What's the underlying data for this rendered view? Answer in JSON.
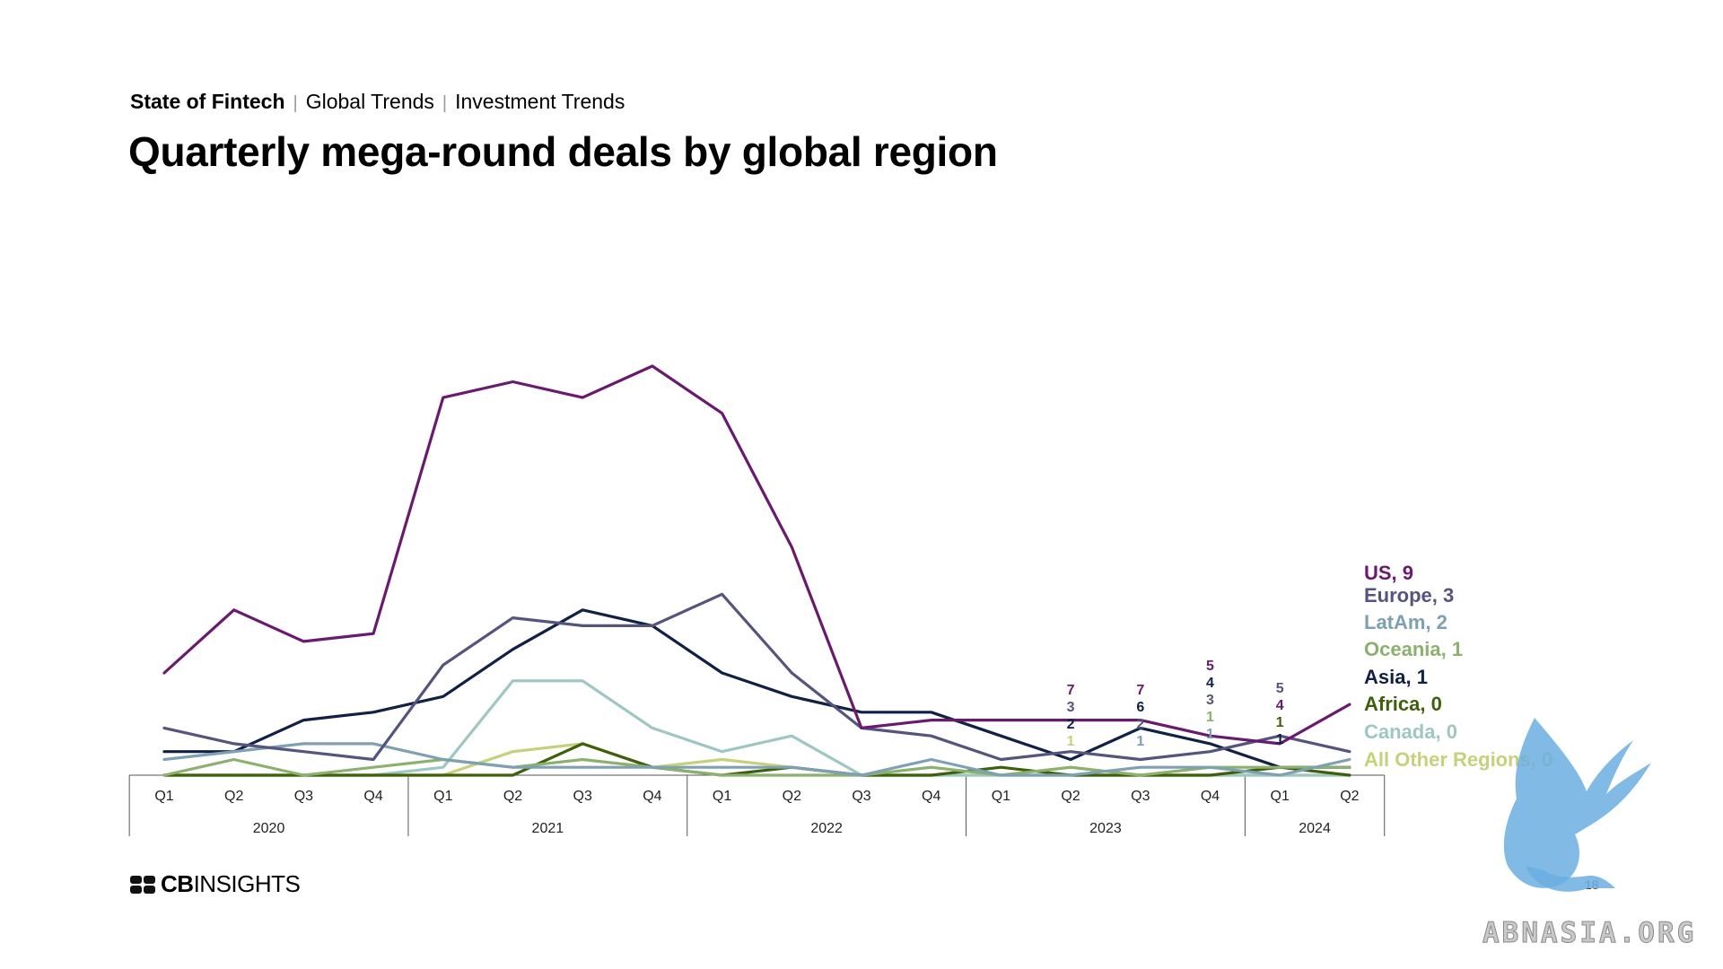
{
  "header": {
    "breadcrumb": [
      "State of Fintech",
      "Global Trends",
      "Investment Trends"
    ],
    "title": "Quarterly mega-round deals by global region"
  },
  "footer": {
    "logo_text_bold": "CB",
    "logo_text_regular": "INSIGHTS",
    "page_number": "18"
  },
  "watermark": {
    "text": "ABNASIA.ORG"
  },
  "chart_data": {
    "type": "line",
    "title": "Quarterly mega-round deals by global region",
    "x_quarters": [
      "Q1",
      "Q2",
      "Q3",
      "Q4",
      "Q1",
      "Q2",
      "Q3",
      "Q4",
      "Q1",
      "Q2",
      "Q3",
      "Q4",
      "Q1",
      "Q2",
      "Q3",
      "Q4",
      "Q1",
      "Q2"
    ],
    "x_years": [
      {
        "label": "2020",
        "quarters": 4
      },
      {
        "label": "2021",
        "quarters": 4
      },
      {
        "label": "2022",
        "quarters": 4
      },
      {
        "label": "2023",
        "quarters": 4
      },
      {
        "label": "2024",
        "quarters": 2
      }
    ],
    "ylim": [
      0,
      52
    ],
    "grid": false,
    "legend": "right",
    "series": [
      {
        "name": "US",
        "legend_label": "US, 9",
        "color": "#6a1a6e",
        "values": [
          13,
          21,
          17,
          18,
          48,
          50,
          48,
          52,
          46,
          29,
          6,
          7,
          7,
          7,
          7,
          5,
          4,
          9
        ]
      },
      {
        "name": "Europe",
        "legend_label": "Europe, 3",
        "color": "#55547f",
        "values": [
          6,
          4,
          3,
          2,
          14,
          20,
          19,
          19,
          23,
          13,
          6,
          5,
          2,
          3,
          2,
          3,
          5,
          3
        ]
      },
      {
        "name": "LatAm",
        "legend_label": "LatAm, 2",
        "color": "#7da0b2",
        "values": [
          2,
          3,
          4,
          4,
          2,
          1,
          1,
          1,
          1,
          1,
          0,
          2,
          0,
          0,
          1,
          1,
          0,
          2
        ]
      },
      {
        "name": "Oceania",
        "legend_label": "Oceania, 1",
        "color": "#8cb06e",
        "values": [
          0,
          2,
          0,
          1,
          2,
          1,
          2,
          1,
          0,
          0,
          0,
          1,
          0,
          1,
          0,
          1,
          1,
          1
        ]
      },
      {
        "name": "Asia",
        "legend_label": "Asia, 1",
        "color": "#112145",
        "values": [
          3,
          3,
          7,
          8,
          10,
          16,
          21,
          19,
          13,
          10,
          8,
          8,
          5,
          2,
          6,
          4,
          1,
          1
        ]
      },
      {
        "name": "Africa",
        "legend_label": "Africa, 0",
        "color": "#3e5f0b",
        "values": [
          0,
          0,
          0,
          0,
          0,
          0,
          4,
          1,
          0,
          1,
          0,
          0,
          1,
          0,
          0,
          0,
          1,
          0
        ]
      },
      {
        "name": "Canada",
        "legend_label": "Canada, 0",
        "color": "#9ec7c2",
        "values": [
          0,
          0,
          0,
          0,
          1,
          12,
          12,
          6,
          3,
          5,
          0,
          0,
          0,
          0,
          0,
          0,
          0,
          0
        ]
      },
      {
        "name": "All Other Regions",
        "legend_label": "All Other Regions, 0",
        "color": "#c7d07a",
        "values": [
          0,
          0,
          0,
          0,
          0,
          3,
          4,
          1,
          2,
          1,
          0,
          0,
          0,
          1,
          0,
          0,
          0,
          0
        ]
      }
    ],
    "data_labels": [
      {
        "quarter_index": 13,
        "series": "US",
        "text": "7",
        "color": "#6a1a6e"
      },
      {
        "quarter_index": 13,
        "series": "Europe",
        "text": "3",
        "color": "#55547f"
      },
      {
        "quarter_index": 13,
        "series": "Asia",
        "text": "2",
        "color": "#112145"
      },
      {
        "quarter_index": 13,
        "series": "All Other Regions",
        "text": "1",
        "color": "#c7d07a"
      },
      {
        "quarter_index": 14,
        "series": "US",
        "text": "7",
        "color": "#6a1a6e"
      },
      {
        "quarter_index": 14,
        "series": "Asia",
        "text": "6",
        "color": "#112145"
      },
      {
        "quarter_index": 14,
        "series": "Europe",
        "text": "2",
        "color": "#55547f"
      },
      {
        "quarter_index": 14,
        "series": "LatAm",
        "text": "1",
        "color": "#7da0b2"
      },
      {
        "quarter_index": 15,
        "series": "US",
        "text": "5",
        "color": "#6a1a6e"
      },
      {
        "quarter_index": 15,
        "series": "Asia",
        "text": "4",
        "color": "#112145"
      },
      {
        "quarter_index": 15,
        "series": "Europe",
        "text": "3",
        "color": "#55547f"
      },
      {
        "quarter_index": 15,
        "series": "Oceania",
        "text": "1",
        "color": "#8cb06e"
      },
      {
        "quarter_index": 15,
        "series": "LatAm",
        "text": "1",
        "color": "#7da0b2"
      },
      {
        "quarter_index": 16,
        "series": "Europe",
        "text": "5",
        "color": "#55547f"
      },
      {
        "quarter_index": 16,
        "series": "US",
        "text": "4",
        "color": "#6a1a6e"
      },
      {
        "quarter_index": 16,
        "series": "Africa",
        "text": "1",
        "color": "#3e5f0b"
      },
      {
        "quarter_index": 16,
        "series": "Asia",
        "text": "1",
        "color": "#112145"
      }
    ]
  }
}
